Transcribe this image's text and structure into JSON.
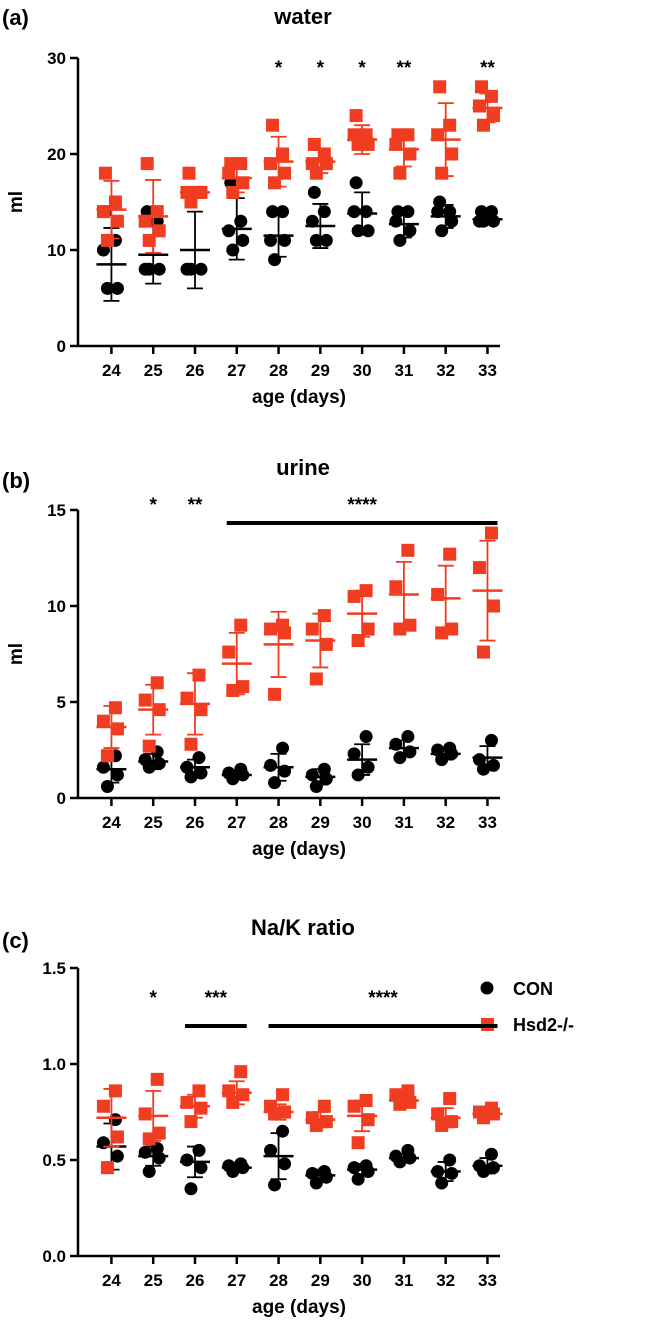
{
  "colors": {
    "con": "#000000",
    "hsd2": "#f03c20"
  },
  "legend": {
    "con": "CON",
    "hsd2": "Hsd2-/-"
  },
  "chart_data": [
    {
      "type": "scatter",
      "panel_label": "(a)",
      "title": "water",
      "xlabel": "age (days)",
      "ylabel": "ml",
      "categories": [
        "24",
        "25",
        "26",
        "27",
        "28",
        "29",
        "30",
        "31",
        "32",
        "33"
      ],
      "ylim": [
        0,
        30
      ],
      "yticks": [
        0,
        10,
        20,
        30
      ],
      "ytick_labels": [
        "0",
        "10",
        "20",
        "30"
      ],
      "series": [
        {
          "name": "CON",
          "key": "con",
          "marker": "circle",
          "points": [
            [
              6,
              6,
              10,
              11,
              14
            ],
            [
              8,
              8,
              8,
              13,
              14
            ],
            [
              8,
              8,
              8,
              16,
              16
            ],
            [
              10,
              11,
              12,
              13,
              17
            ],
            [
              9,
              11,
              11,
              14,
              14
            ],
            [
              11,
              11,
              13,
              14,
              16
            ],
            [
              12,
              12,
              14,
              14,
              17
            ],
            [
              11,
              12,
              13,
              14,
              14
            ],
            [
              12,
              13,
              14,
              14,
              15
            ],
            [
              13,
              13,
              13,
              14,
              14
            ]
          ],
          "mean": [
            8.5,
            9.5,
            10,
            12.2,
            11.5,
            12.5,
            13.8,
            12.7,
            13.5,
            13.2
          ],
          "sd": [
            3.8,
            3.0,
            4.0,
            3.2,
            2.2,
            2.3,
            2.2,
            1.4,
            1.2,
            0.5
          ]
        },
        {
          "name": "Hsd2-/-",
          "key": "hsd2",
          "marker": "square",
          "points": [
            [
              11,
              13,
              14,
              15,
              18
            ],
            [
              11,
              12,
              13,
              14,
              19
            ],
            [
              15,
              16,
              16,
              16,
              18
            ],
            [
              16,
              17,
              18,
              19,
              19
            ],
            [
              17,
              18,
              19,
              20,
              23
            ],
            [
              18,
              19,
              19,
              20,
              21
            ],
            [
              21,
              21,
              22,
              22,
              24
            ],
            [
              18,
              20,
              21,
              22,
              22
            ],
            [
              18,
              20,
              22,
              23,
              27
            ],
            [
              23,
              24,
              25,
              26,
              27
            ]
          ],
          "mean": [
            14.2,
            13.5,
            16,
            17.5,
            19.2,
            19.2,
            21.5,
            20.5,
            21.5,
            24.8
          ],
          "sd": [
            3.0,
            3.8,
            0.5,
            1.5,
            2.6,
            1.2,
            1.5,
            1.8,
            3.8,
            1.5
          ]
        }
      ],
      "annotations": [
        {
          "text": "*",
          "x": "28"
        },
        {
          "text": "*",
          "x": "29"
        },
        {
          "text": "*",
          "x": "30"
        },
        {
          "text": "**",
          "x": "31"
        },
        {
          "text": "**",
          "x": "33"
        }
      ],
      "brackets": []
    },
    {
      "type": "scatter",
      "panel_label": "(b)",
      "title": "urine",
      "xlabel": "age (days)",
      "ylabel": "ml",
      "categories": [
        "24",
        "25",
        "26",
        "27",
        "28",
        "29",
        "30",
        "31",
        "32",
        "33"
      ],
      "ylim": [
        0,
        15
      ],
      "yticks": [
        0,
        5,
        10,
        15
      ],
      "ytick_labels": [
        "0",
        "5",
        "10",
        "15"
      ],
      "series": [
        {
          "name": "CON",
          "key": "con",
          "marker": "circle",
          "points": [
            [
              0.6,
              1.2,
              1.6,
              2.2
            ],
            [
              1.6,
              1.8,
              2.0,
              2.4
            ],
            [
              1.1,
              1.3,
              1.6,
              2.1
            ],
            [
              1.0,
              1.2,
              1.3,
              1.5
            ],
            [
              0.8,
              1.4,
              1.7,
              2.6
            ],
            [
              0.6,
              1.0,
              1.2,
              1.5
            ],
            [
              1.2,
              1.6,
              2.3,
              3.2
            ],
            [
              2.1,
              2.4,
              2.8,
              3.2
            ],
            [
              2.0,
              2.3,
              2.5,
              2.6
            ],
            [
              1.5,
              1.7,
              2.0,
              3.0
            ]
          ],
          "mean": [
            1.5,
            1.9,
            1.6,
            1.2,
            1.6,
            1.1,
            2.0,
            2.6,
            2.3,
            2.1
          ],
          "sd": [
            0.7,
            0.4,
            0.4,
            0.2,
            0.7,
            0.4,
            0.8,
            0.4,
            0.3,
            0.6
          ]
        },
        {
          "name": "Hsd2-/-",
          "key": "hsd2",
          "marker": "square",
          "points": [
            [
              2.2,
              3.6,
              4.0,
              4.7
            ],
            [
              2.7,
              4.6,
              5.1,
              6.0
            ],
            [
              2.8,
              4.6,
              5.2,
              6.4
            ],
            [
              5.6,
              5.8,
              7.6,
              9.0
            ],
            [
              5.4,
              8.6,
              8.8,
              9.0
            ],
            [
              6.2,
              8.0,
              8.8,
              9.5
            ],
            [
              8.2,
              8.8,
              10.5,
              10.8
            ],
            [
              8.8,
              9.0,
              11.0,
              12.9
            ],
            [
              8.6,
              8.8,
              10.6,
              12.7
            ],
            [
              7.6,
              10.0,
              12.0,
              13.8
            ]
          ],
          "mean": [
            3.7,
            4.6,
            4.9,
            7.0,
            8.0,
            8.2,
            9.6,
            10.6,
            10.4,
            10.8
          ],
          "sd": [
            1.1,
            1.3,
            1.6,
            1.6,
            1.7,
            1.4,
            1.2,
            1.7,
            1.7,
            2.6
          ]
        }
      ],
      "annotations": [
        {
          "text": "*",
          "x": "25"
        },
        {
          "text": "**",
          "x": "26"
        },
        {
          "text": "****",
          "x": "30"
        }
      ],
      "brackets": [
        {
          "from": "27",
          "to": "33",
          "label": "****"
        }
      ]
    },
    {
      "type": "scatter",
      "panel_label": "(c)",
      "title": "Na/K ratio",
      "xlabel": "age (days)",
      "ylabel": "",
      "categories": [
        "24",
        "25",
        "26",
        "27",
        "28",
        "29",
        "30",
        "31",
        "32",
        "33"
      ],
      "ylim": [
        0,
        1.5
      ],
      "yticks": [
        0,
        0.5,
        1.0,
        1.5
      ],
      "ytick_labels": [
        "0.0",
        "0.5",
        "1.0",
        "1.5"
      ],
      "series": [
        {
          "name": "CON",
          "key": "con",
          "marker": "circle",
          "points": [
            [
              0.46,
              0.52,
              0.59,
              0.71
            ],
            [
              0.44,
              0.51,
              0.54,
              0.56
            ],
            [
              0.35,
              0.46,
              0.5,
              0.55
            ],
            [
              0.44,
              0.46,
              0.47,
              0.48
            ],
            [
              0.37,
              0.48,
              0.55,
              0.65
            ],
            [
              0.38,
              0.41,
              0.43,
              0.44
            ],
            [
              0.4,
              0.44,
              0.46,
              0.47
            ],
            [
              0.49,
              0.51,
              0.52,
              0.55
            ],
            [
              0.38,
              0.43,
              0.44,
              0.5
            ],
            [
              0.44,
              0.46,
              0.47,
              0.53
            ]
          ],
          "mean": [
            0.57,
            0.52,
            0.49,
            0.46,
            0.52,
            0.42,
            0.45,
            0.51,
            0.44,
            0.47
          ],
          "sd": [
            0.12,
            0.05,
            0.08,
            0.02,
            0.12,
            0.03,
            0.03,
            0.02,
            0.05,
            0.04
          ]
        },
        {
          "name": "Hsd2-/-",
          "key": "hsd2",
          "marker": "square",
          "points": [
            [
              0.46,
              0.62,
              0.78,
              0.86
            ],
            [
              0.61,
              0.64,
              0.74,
              0.92
            ],
            [
              0.7,
              0.77,
              0.8,
              0.86
            ],
            [
              0.8,
              0.84,
              0.86,
              0.96
            ],
            [
              0.74,
              0.75,
              0.78,
              0.84
            ],
            [
              0.68,
              0.7,
              0.72,
              0.78
            ],
            [
              0.59,
              0.71,
              0.78,
              0.81
            ],
            [
              0.79,
              0.8,
              0.84,
              0.86
            ],
            [
              0.68,
              0.7,
              0.74,
              0.82
            ],
            [
              0.72,
              0.74,
              0.75,
              0.77
            ]
          ],
          "mean": [
            0.72,
            0.73,
            0.78,
            0.85,
            0.75,
            0.71,
            0.73,
            0.81,
            0.72,
            0.74
          ],
          "sd": [
            0.15,
            0.13,
            0.06,
            0.06,
            0.04,
            0.04,
            0.08,
            0.03,
            0.05,
            0.02
          ]
        }
      ],
      "annotations": [
        {
          "text": "*",
          "x": "25"
        },
        {
          "text": "***",
          "x": "26.5"
        },
        {
          "text": "****",
          "x": "30.5"
        }
      ],
      "brackets": [
        {
          "from": "26",
          "to": "27",
          "label": ""
        },
        {
          "from": "28",
          "to": "33",
          "label": ""
        }
      ]
    }
  ]
}
